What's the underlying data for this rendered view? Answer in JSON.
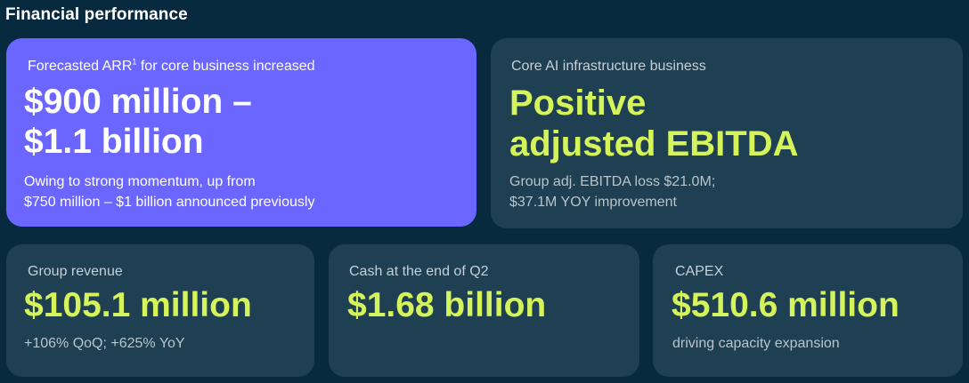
{
  "page": {
    "title": "Financial performance"
  },
  "cards": {
    "arr": {
      "label": "Forecasted ARR",
      "label_superscript": "1",
      "label_suffix": " for core business increased",
      "value_line1": "$900 million –",
      "value_line2": "$1.1 billion",
      "sub_line1": "Owing to strong momentum, up from",
      "sub_line2": "$750 million – $1 billion announced previously"
    },
    "ebitda": {
      "label": "Core AI infrastructure business",
      "value_line1": "Positive",
      "value_line2": "adjusted EBITDA",
      "sub_line1": "Group adj. EBITDA loss $21.0M;",
      "sub_line2": "$37.1M YOY improvement"
    },
    "revenue": {
      "label": "Group revenue",
      "value": "$105.1 million",
      "sub": "+106% QoQ; +625% YoY"
    },
    "cash": {
      "label": "Cash at the end of Q2",
      "value": "$1.68 billion"
    },
    "capex": {
      "label": "CAPEX",
      "value": "$510.6 million",
      "sub": "driving capacity expansion"
    }
  },
  "colors": {
    "background": "#072a3f",
    "card": "#1f3f52",
    "highlight_card": "#6a66ff",
    "accent_lime": "#d5f35a"
  }
}
